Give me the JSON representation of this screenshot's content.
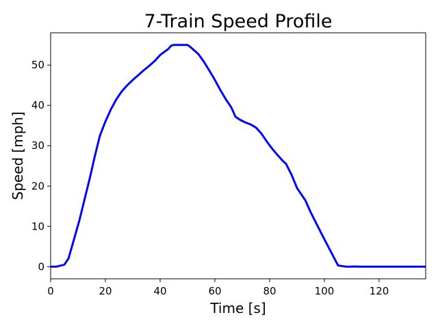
{
  "chart_data": {
    "type": "line",
    "title": "7-Train Speed Profile",
    "xlabel": "Time [s]",
    "ylabel": "Speed [mph]",
    "xlim": [
      0,
      137
    ],
    "ylim": [
      -3,
      58
    ],
    "xticks": [
      0,
      20,
      40,
      60,
      80,
      100,
      120
    ],
    "yticks": [
      0,
      10,
      20,
      30,
      40,
      50
    ],
    "grid": false,
    "series": [
      {
        "color": "#0000ff",
        "x": [
          0,
          2,
          5,
          6.5,
          8,
          10.5,
          12.5,
          14.5,
          16,
          18,
          20,
          22,
          24,
          26,
          28,
          30,
          32,
          34,
          36,
          38,
          40,
          42,
          43,
          44,
          45,
          47,
          50,
          51,
          54,
          56,
          58,
          60,
          62,
          64,
          66,
          67.5,
          69,
          71,
          73,
          75,
          77,
          79,
          81,
          83,
          85,
          86,
          88,
          90,
          92,
          93,
          95,
          97,
          100,
          103,
          105,
          107,
          108,
          109.5,
          111,
          113,
          120,
          130,
          137
        ],
        "y": [
          0,
          0,
          0.5,
          2,
          5.5,
          11.5,
          17,
          22.5,
          27,
          32.5,
          36,
          39,
          41.5,
          43.5,
          45,
          46.3,
          47.5,
          48.7,
          49.8,
          51,
          52.5,
          53.5,
          54,
          54.8,
          55,
          55,
          55,
          54.5,
          52.7,
          50.8,
          48.6,
          46.3,
          43.8,
          41.5,
          39.5,
          37.2,
          36.5,
          35.8,
          35.3,
          34.5,
          33,
          31,
          29.2,
          27.6,
          26.1,
          25.5,
          22.8,
          19.5,
          17.5,
          16.5,
          13.5,
          10.8,
          6.8,
          2.9,
          0.3,
          0.1,
          0,
          0,
          0.05,
          0,
          0,
          0,
          0
        ]
      }
    ]
  }
}
